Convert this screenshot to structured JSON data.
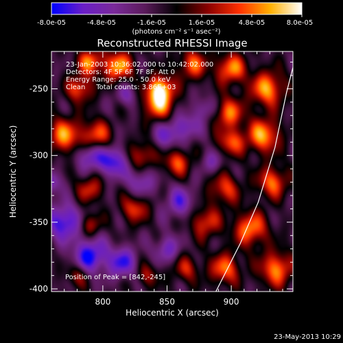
{
  "chart_data": {
    "type": "heatmap",
    "title": "Reconstructed RHESSI Image",
    "xlabel": "Heliocentric X (arcsec)",
    "ylabel": "Heliocentric Y (arcsec)",
    "xlim": [
      760,
      948
    ],
    "ylim": [
      -402,
      -222
    ],
    "xticks": [
      800,
      850,
      900
    ],
    "yticks": [
      -250,
      -300,
      -350,
      -400
    ],
    "colorbar": {
      "min": -8e-05,
      "max": 8e-05,
      "tick_labels": [
        "-8.0e-05",
        "-4.8e-05",
        "-1.6e-05",
        "1.6e-05",
        "4.8e-05",
        "8.0e-05"
      ],
      "unit_label": "(photons cm⁻² s⁻¹ asec⁻²)",
      "colors": [
        "#0000ff",
        "#6a1ec8",
        "#7a2a9a",
        "#5a1a5a",
        "#000000",
        "#8a0000",
        "#ff3000",
        "#ffb000",
        "#ffffff"
      ]
    },
    "annotations": [
      "23-Jan-2003 10:36:02.000 to 10:42:02.000",
      "Detectors: 4F 5F 6F 7F 8F, Att 0",
      "Energy Range: 25.0 - 50.0 keV",
      "Clean     Total counts: 3.86E+03"
    ],
    "peak_label": "Position of Peak = [842,-245]",
    "peak": {
      "x": 842,
      "y": -245
    },
    "limb_arc": [
      [
        888,
        -402
      ],
      [
        907,
        -366
      ],
      [
        921,
        -335
      ],
      [
        934,
        -294
      ],
      [
        943,
        -253
      ],
      [
        948,
        -234
      ]
    ],
    "sources": [
      {
        "x": 845,
        "y": -250,
        "v": 8e-05,
        "s": 7
      },
      {
        "x": 843,
        "y": -262,
        "v": 6.5e-05,
        "s": 8
      },
      {
        "x": 812,
        "y": -233,
        "v": 7e-05,
        "s": 8
      },
      {
        "x": 790,
        "y": -230,
        "v": 6e-05,
        "s": 7
      },
      {
        "x": 782,
        "y": -250,
        "v": 5.5e-05,
        "s": 7
      },
      {
        "x": 770,
        "y": -285,
        "v": 6.5e-05,
        "s": 9
      },
      {
        "x": 795,
        "y": -285,
        "v": 5.5e-05,
        "s": 8
      },
      {
        "x": 830,
        "y": -300,
        "v": 4.5e-05,
        "s": 7
      },
      {
        "x": 858,
        "y": -305,
        "v": 5.5e-05,
        "s": 7
      },
      {
        "x": 790,
        "y": -325,
        "v": 4.5e-05,
        "s": 7
      },
      {
        "x": 825,
        "y": -340,
        "v": 5e-05,
        "s": 7
      },
      {
        "x": 790,
        "y": -352,
        "v": 4e-05,
        "s": 6
      },
      {
        "x": 870,
        "y": -232,
        "v": 5.5e-05,
        "s": 8
      },
      {
        "x": 900,
        "y": -235,
        "v": 6.5e-05,
        "s": 8
      },
      {
        "x": 928,
        "y": -250,
        "v": 7e-05,
        "s": 9
      },
      {
        "x": 925,
        "y": -285,
        "v": 7e-05,
        "s": 9
      },
      {
        "x": 898,
        "y": -268,
        "v": 6e-05,
        "s": 8
      },
      {
        "x": 900,
        "y": -290,
        "v": 5.5e-05,
        "s": 7
      },
      {
        "x": 932,
        "y": -320,
        "v": 6e-05,
        "s": 8
      },
      {
        "x": 895,
        "y": -325,
        "v": 5e-05,
        "s": 8
      },
      {
        "x": 915,
        "y": -355,
        "v": 6.5e-05,
        "s": 9
      },
      {
        "x": 880,
        "y": -350,
        "v": 5e-05,
        "s": 8
      },
      {
        "x": 935,
        "y": -385,
        "v": 6.5e-05,
        "s": 9
      },
      {
        "x": 895,
        "y": -385,
        "v": 6e-05,
        "s": 8
      },
      {
        "x": 865,
        "y": -385,
        "v": 4e-05,
        "s": 7
      },
      {
        "x": 835,
        "y": -390,
        "v": 3.5e-05,
        "s": 6
      },
      {
        "x": 780,
        "y": -390,
        "v": 3.5e-05,
        "s": 6
      },
      {
        "x": 808,
        "y": -305,
        "v": -6e-05,
        "s": 8
      },
      {
        "x": 790,
        "y": -300,
        "v": -5e-05,
        "s": 7
      },
      {
        "x": 770,
        "y": -350,
        "v": -6.5e-05,
        "s": 9
      },
      {
        "x": 790,
        "y": -375,
        "v": -6.5e-05,
        "s": 9
      },
      {
        "x": 815,
        "y": -380,
        "v": -5.5e-05,
        "s": 8
      },
      {
        "x": 830,
        "y": -320,
        "v": -4e-05,
        "s": 7
      },
      {
        "x": 860,
        "y": -335,
        "v": -4.5e-05,
        "s": 8
      },
      {
        "x": 865,
        "y": -278,
        "v": -4e-05,
        "s": 7
      },
      {
        "x": 850,
        "y": -285,
        "v": -4e-05,
        "s": 7
      },
      {
        "x": 880,
        "y": -265,
        "v": -3.5e-05,
        "s": 6
      },
      {
        "x": 850,
        "y": -370,
        "v": -4e-05,
        "s": 7
      },
      {
        "x": 885,
        "y": -305,
        "v": -3e-05,
        "s": 6
      },
      {
        "x": 818,
        "y": -255,
        "v": -3e-05,
        "s": 6
      },
      {
        "x": 760,
        "y": -320,
        "v": -4e-05,
        "s": 6
      }
    ]
  },
  "footer": {
    "date_stamp": "23-May-2013 10:29"
  }
}
